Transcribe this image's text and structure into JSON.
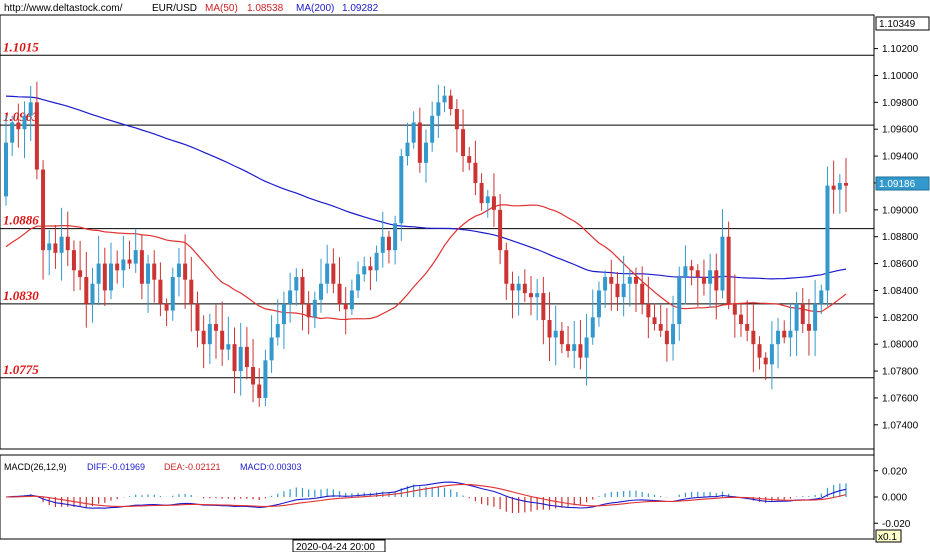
{
  "header": {
    "url": "http://www.deltastock.com/",
    "symbol": "EUR/USD",
    "ma50_label": "MA(50)",
    "ma50_value": "1.08538",
    "ma200_label": "MA(200)",
    "ma200_value": "1.09282"
  },
  "price_panel": {
    "top_value_box": "1.10349",
    "current_price_box": "1.09186",
    "y_ticks": [
      "1.10200",
      "1.10000",
      "1.09800",
      "1.09600",
      "1.09400",
      "1.09200",
      "1.09000",
      "1.08800",
      "1.08600",
      "1.08400",
      "1.08200",
      "1.08000",
      "1.07800",
      "1.07600",
      "1.07400"
    ],
    "levels": [
      {
        "label": "1.1015",
        "value": 1.1015
      },
      {
        "label": "1.0963",
        "value": 1.0963
      },
      {
        "label": "1.0886",
        "value": 1.0886
      },
      {
        "label": "1.0830",
        "value": 1.083
      },
      {
        "label": "1.0775",
        "value": 1.0775
      }
    ]
  },
  "macd_panel": {
    "title": "MACD(26,12,9)",
    "diff_label": "DIFF:-0.01969",
    "dea_label": "DEA:-0.02121",
    "macd_label": "MACD:0.00303",
    "y_ticks": [
      "0.020",
      "0.000",
      "-0.020"
    ],
    "scale_box": "x0.1"
  },
  "footer": {
    "cursor_date": "2020-04-24 20:00"
  },
  "colors": {
    "bull": "#3399cc",
    "bear": "#cc3333",
    "ma200": "#1a1acc",
    "ma50": "#e03030",
    "level_label": "#dd1111",
    "diff_line": "#1a1acc",
    "dea_line": "#e03030"
  },
  "chart_data": {
    "type": "candlestick",
    "ylim": [
      1.0722,
      1.1045
    ],
    "candles_close": [
      1.095,
      1.0965,
      1.096,
      1.097,
      1.098,
      1.093,
      1.087,
      1.0875,
      1.0868,
      1.088,
      1.087,
      1.0855,
      1.085,
      1.083,
      1.0845,
      1.086,
      1.084,
      1.086,
      1.0855,
      1.0863,
      1.086,
      1.087,
      1.0845,
      1.086,
      1.0848,
      1.083,
      1.0825,
      1.085,
      1.086,
      1.0848,
      1.083,
      1.081,
      1.08,
      1.0815,
      1.081,
      1.0796,
      1.08,
      1.078,
      1.0798,
      1.0783,
      1.077,
      1.076,
      1.0788,
      1.0805,
      1.0815,
      1.083,
      1.084,
      1.085,
      1.083,
      1.082,
      1.0833,
      1.0845,
      1.086,
      1.0845,
      1.083,
      1.0826,
      1.084,
      1.0852,
      1.0858,
      1.0855,
      1.0868,
      1.088,
      1.087,
      1.089,
      1.094,
      1.095,
      1.0965,
      1.0935,
      1.095,
      1.097,
      1.098,
      1.0985,
      1.0975,
      1.096,
      1.094,
      1.0935,
      1.092,
      1.0905,
      1.091,
      1.09,
      1.087,
      1.0845,
      1.084,
      1.0845,
      1.0838,
      1.0835,
      1.0838,
      1.0818,
      1.0805,
      1.081,
      1.08,
      1.0795,
      1.08,
      1.079,
      1.0805,
      1.082,
      1.084,
      1.085,
      1.0845,
      1.0835,
      1.0845,
      1.085,
      1.0845,
      1.083,
      1.082,
      1.0815,
      1.081,
      1.08,
      1.0815,
      1.085,
      1.0858,
      1.0855,
      1.085,
      1.0845,
      1.0855,
      1.084,
      1.088,
      1.083,
      1.0822,
      1.0815,
      1.081,
      1.08,
      1.079,
      1.0785,
      1.08,
      1.081,
      1.0805,
      1.081,
      1.083,
      1.0815,
      1.081,
      1.083,
      1.084,
      1.0918,
      1.0915,
      1.092,
      1.0918
    ]
  }
}
